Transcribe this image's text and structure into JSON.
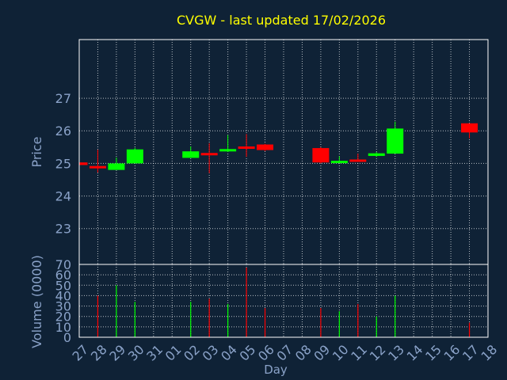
{
  "chart_data": {
    "type": "candlestick",
    "title": "CVGW - last updated 17/02/2026",
    "xlabel": "Day",
    "colors": {
      "background": "#0f2236",
      "frame": "#ffffff",
      "grid": "#ffffff",
      "title": "#ffff00",
      "label": "#8aa2c8",
      "up": "#00ff00",
      "down": "#ff0000"
    },
    "x_ticks": [
      "27",
      "28",
      "29",
      "30",
      "31",
      "01",
      "02",
      "03",
      "04",
      "05",
      "06",
      "07",
      "08",
      "09",
      "10",
      "11",
      "12",
      "13",
      "14",
      "15",
      "16",
      "17",
      "18"
    ],
    "price": {
      "ylabel": "Price",
      "ylim": [
        21.9,
        28.8
      ],
      "yticks": [
        23,
        24,
        25,
        26,
        27
      ],
      "candles": [
        {
          "day": "27",
          "open": 25.03,
          "high": 25.06,
          "low": 24.92,
          "close": 24.95
        },
        {
          "day": "28",
          "open": 24.92,
          "high": 25.42,
          "low": 24.72,
          "close": 24.86
        },
        {
          "day": "29",
          "open": 24.8,
          "high": 25.18,
          "low": 24.8,
          "close": 25.0
        },
        {
          "day": "30",
          "open": 25.0,
          "high": 25.48,
          "low": 25.0,
          "close": 25.43
        },
        {
          "day": "02",
          "open": 25.17,
          "high": 25.52,
          "low": 25.17,
          "close": 25.37
        },
        {
          "day": "03",
          "open": 25.32,
          "high": 25.62,
          "low": 24.7,
          "close": 25.27
        },
        {
          "day": "04",
          "open": 25.4,
          "high": 25.87,
          "low": 25.35,
          "close": 25.44
        },
        {
          "day": "05",
          "open": 25.52,
          "high": 25.9,
          "low": 25.2,
          "close": 25.5
        },
        {
          "day": "06",
          "open": 25.58,
          "high": 25.6,
          "low": 25.38,
          "close": 25.41
        },
        {
          "day": "09",
          "open": 25.47,
          "high": 25.5,
          "low": 25.0,
          "close": 25.03
        },
        {
          "day": "10",
          "open": 25.02,
          "high": 25.22,
          "low": 25.02,
          "close": 25.08
        },
        {
          "day": "11",
          "open": 25.12,
          "high": 25.3,
          "low": 25.05,
          "close": 25.07
        },
        {
          "day": "12",
          "open": 25.23,
          "high": 25.35,
          "low": 25.2,
          "close": 25.31
        },
        {
          "day": "13",
          "open": 25.3,
          "high": 26.28,
          "low": 25.3,
          "close": 26.07
        },
        {
          "day": "17",
          "open": 26.23,
          "high": 26.23,
          "low": 25.77,
          "close": 25.95
        }
      ]
    },
    "volume": {
      "ylabel": "Volume (0000)",
      "ylim": [
        0,
        70
      ],
      "yticks": [
        0,
        10,
        20,
        30,
        40,
        50,
        60,
        70
      ],
      "bars": [
        {
          "day": "28",
          "value": 40,
          "dir": "down"
        },
        {
          "day": "29",
          "value": 50,
          "dir": "up"
        },
        {
          "day": "30",
          "value": 34,
          "dir": "up"
        },
        {
          "day": "02",
          "value": 34,
          "dir": "up"
        },
        {
          "day": "03",
          "value": 37,
          "dir": "down"
        },
        {
          "day": "04",
          "value": 32,
          "dir": "up"
        },
        {
          "day": "05",
          "value": 67,
          "dir": "down"
        },
        {
          "day": "06",
          "value": 28,
          "dir": "down"
        },
        {
          "day": "09",
          "value": 28,
          "dir": "down"
        },
        {
          "day": "10",
          "value": 25,
          "dir": "up"
        },
        {
          "day": "11",
          "value": 32,
          "dir": "down"
        },
        {
          "day": "12",
          "value": 20,
          "dir": "up"
        },
        {
          "day": "13",
          "value": 40,
          "dir": "up"
        },
        {
          "day": "17",
          "value": 14,
          "dir": "down"
        }
      ]
    }
  }
}
